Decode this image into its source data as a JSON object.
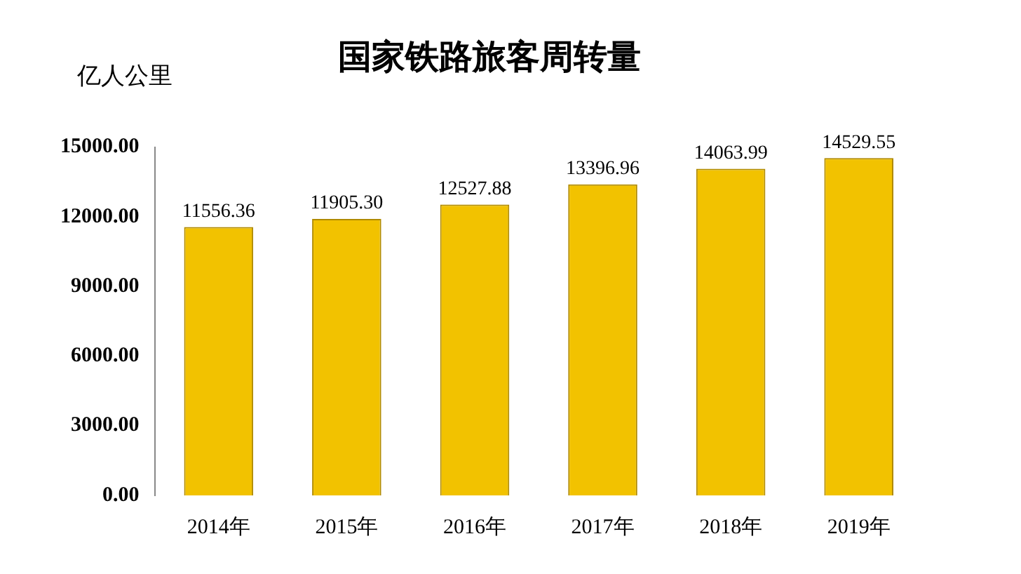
{
  "chart_data": {
    "type": "bar",
    "title": "国家铁路旅客周转量",
    "ylabel": "亿人公里",
    "categories": [
      "2014年",
      "2015年",
      "2016年",
      "2017年",
      "2018年",
      "2019年"
    ],
    "values": [
      11556.36,
      11905.3,
      12527.88,
      13396.96,
      14063.99,
      14529.55
    ],
    "color": "#f2c200",
    "ylim": [
      0,
      15000
    ],
    "yticks": [
      {
        "value": 0,
        "label": "0.00"
      },
      {
        "value": 3000,
        "label": "3000.00"
      },
      {
        "value": 6000,
        "label": "6000.00"
      },
      {
        "value": 9000,
        "label": "9000.00"
      },
      {
        "value": 12000,
        "label": "12000.00"
      },
      {
        "value": 15000,
        "label": "15000.00"
      }
    ],
    "value_labels": [
      "11556.36",
      "11905.30",
      "12527.88",
      "13396.96",
      "14063.99",
      "14529.55"
    ],
    "grid": false,
    "legend": false
  }
}
